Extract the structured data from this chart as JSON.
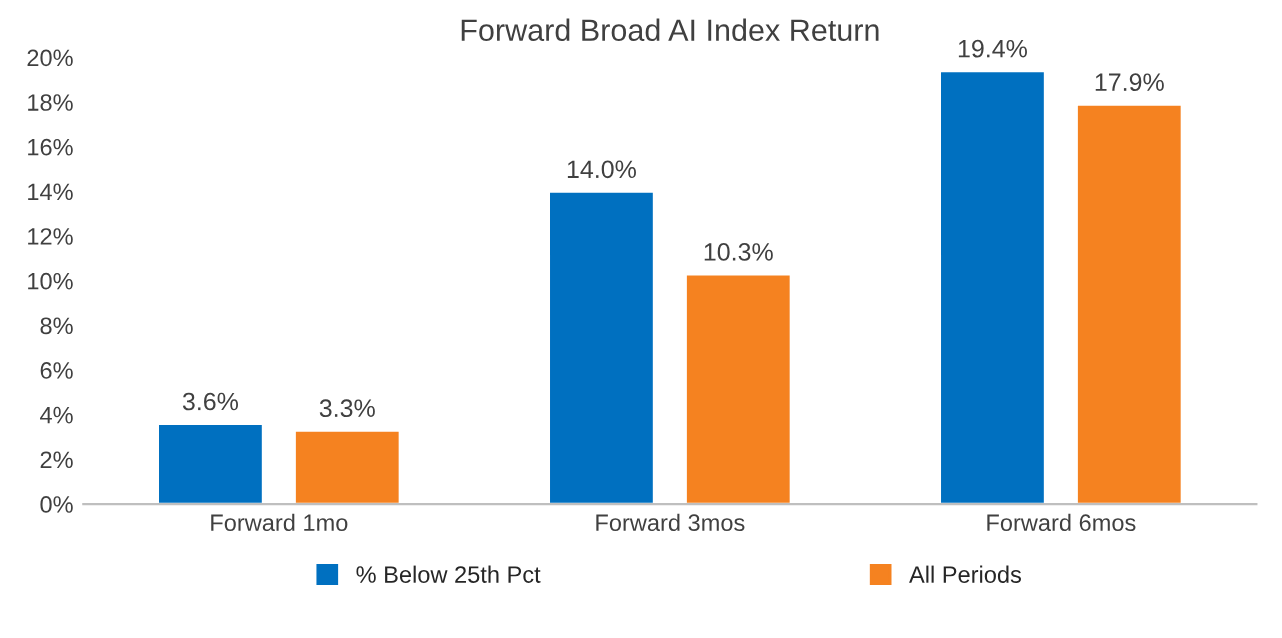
{
  "chart_data": {
    "type": "bar",
    "title": "Forward Broad AI Index Return",
    "categories": [
      "Forward 1mo",
      "Forward 3mos",
      "Forward 6mos"
    ],
    "series": [
      {
        "name": "% Below 25th Pct",
        "color": "#0070c0",
        "values": [
          3.6,
          14.0,
          19.4
        ],
        "value_labels": [
          "3.6%",
          "14.0%",
          "19.4%"
        ]
      },
      {
        "name": "All Periods",
        "color": "#f58220",
        "values": [
          3.3,
          10.3,
          17.9
        ],
        "value_labels": [
          "3.3%",
          "10.3%",
          "17.9%"
        ]
      }
    ],
    "ylim": [
      0,
      20
    ],
    "yticks": [
      {
        "value": 0,
        "label": "0%"
      },
      {
        "value": 2,
        "label": "2%"
      },
      {
        "value": 4,
        "label": "4%"
      },
      {
        "value": 6,
        "label": "6%"
      },
      {
        "value": 8,
        "label": "8%"
      },
      {
        "value": 10,
        "label": "10%"
      },
      {
        "value": 12,
        "label": "12%"
      },
      {
        "value": 14,
        "label": "14%"
      },
      {
        "value": 16,
        "label": "16%"
      },
      {
        "value": 18,
        "label": "18%"
      },
      {
        "value": 20,
        "label": "20%"
      }
    ],
    "grid": false,
    "legend": "bottom"
  }
}
